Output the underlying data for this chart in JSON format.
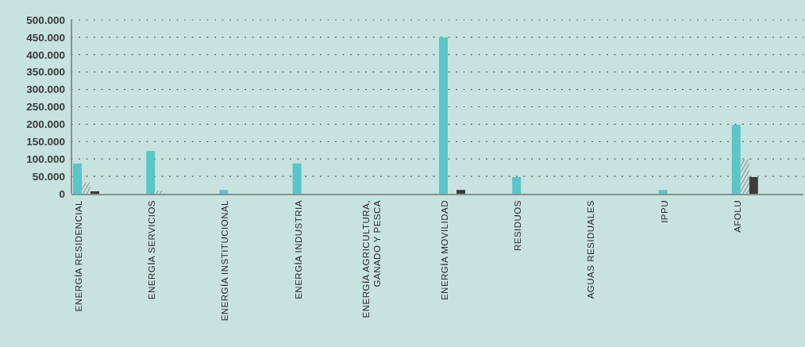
{
  "chart_data": {
    "type": "bar",
    "categories": [
      "ENERGÍA RESIDENCIAL",
      "ENERGÍA SERVICIOS",
      "ENERGÍA INSTITUCIONAL",
      "ENERGÍA INDUSTRIA",
      "ENERGÍA AGRICULTURA, GANADO Y PESCA",
      "ENERGÍA MOVILIDAD",
      "RESIDUOS",
      "AGUAS RESIDUALES",
      "IPPU",
      "AFOLU"
    ],
    "series": [
      {
        "color": "#5bc5c7",
        "values": [
          87000,
          123000,
          11000,
          87000,
          0,
          450000,
          48000,
          0,
          11000,
          198000
        ]
      },
      {
        "color": "#3c3c3c",
        "values": [
          32000,
          9000,
          0,
          0,
          0,
          0,
          0,
          0,
          0,
          99000
        ]
      },
      {
        "color": "#3c3c3c",
        "values": [
          7000,
          0,
          0,
          0,
          0,
          11000,
          0,
          0,
          0,
          48000
        ]
      }
    ],
    "ylim": [
      0,
      500000
    ],
    "yticks": [
      {
        "value": 0,
        "label": "0"
      },
      {
        "value": 50000,
        "label": "50.000"
      },
      {
        "value": 100000,
        "label": "100.000"
      },
      {
        "value": 150000,
        "label": "150.000"
      },
      {
        "value": 200000,
        "label": "200.000"
      },
      {
        "value": 250000,
        "label": "250.000"
      },
      {
        "value": 300000,
        "label": "300.000"
      },
      {
        "value": 350000,
        "label": "350.000"
      },
      {
        "value": 400000,
        "label": "400.000"
      },
      {
        "value": 450000,
        "label": "450.000"
      },
      {
        "value": 500000,
        "label": "500.000"
      }
    ],
    "grid": "y"
  }
}
